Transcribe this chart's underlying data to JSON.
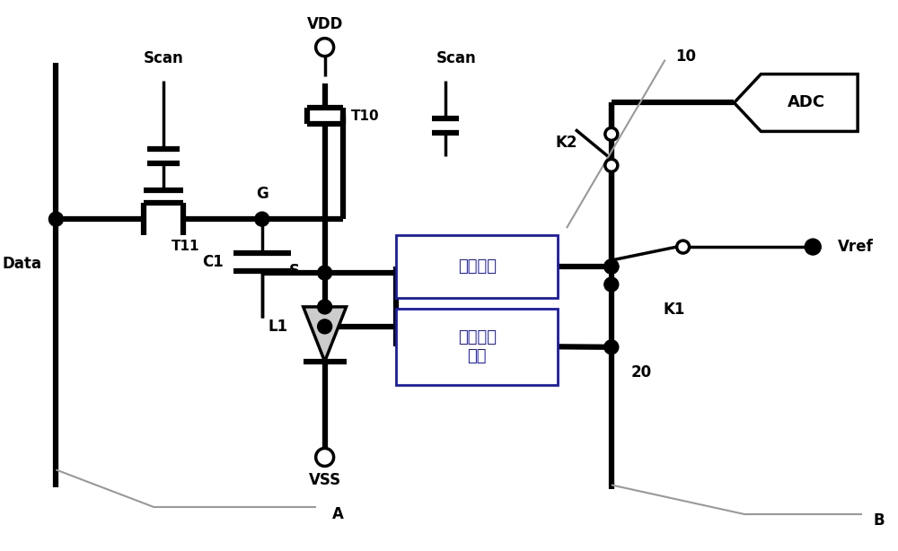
{
  "bg": "#ffffff",
  "lc": "#000000",
  "lw": 2.5,
  "blw": 4.5,
  "glw": 1.5,
  "gc": "#999999",
  "bc": "#1a1aaa",
  "figsize": [
    10.0,
    6.14
  ],
  "dpi": 100,
  "texts": {
    "Scan1": "Scan",
    "Scan2": "Scan",
    "VDD": "VDD",
    "Data": "Data",
    "T11": "T11",
    "G": "G",
    "C1": "C1",
    "T10": "T10",
    "S": "S",
    "L1": "L1",
    "VSS": "VSS",
    "A": "A",
    "detect": "偵测模块",
    "ctrl": "偵测控制\n模块",
    "n10": "10",
    "n20": "20",
    "K2": "K2",
    "K1": "K1",
    "ADC": "ADC",
    "Vref": "Vref",
    "B": "B"
  }
}
